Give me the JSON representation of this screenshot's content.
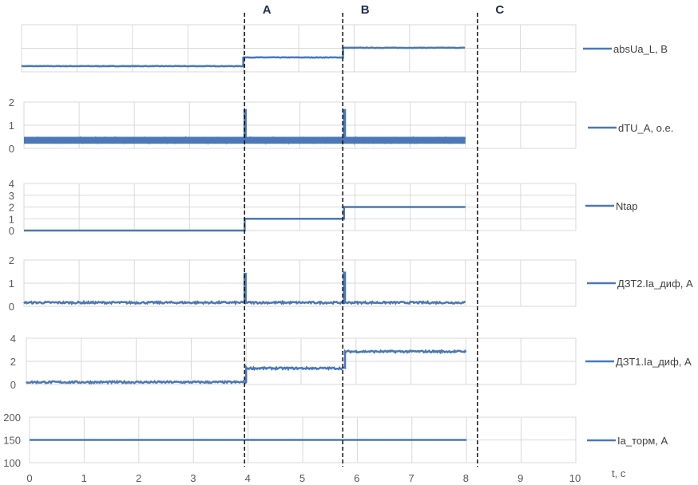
{
  "chart_data": {
    "type": "line",
    "title": "",
    "xlabel": "t, c",
    "xlim": [
      0,
      10
    ],
    "x_ticks": [
      "0",
      "1",
      "2",
      "3",
      "4",
      "5",
      "6",
      "7",
      "8",
      "9",
      "10"
    ],
    "grid": true,
    "legend_placement": "right",
    "line_color": "#4a78b8",
    "markers": [
      {
        "label": "A",
        "x": 4.0
      },
      {
        "label": "B",
        "x": 5.8
      },
      {
        "label": "C",
        "x": 8.27
      }
    ],
    "series": [
      {
        "name": "absUa_L, B",
        "ylim": [
          0,
          2
        ],
        "y_ticks": [],
        "gridlines": [
          1
        ],
        "segments": [
          {
            "from": 0,
            "to": 4.0,
            "value": 0.24
          },
          {
            "from": 4.0,
            "to": 5.8,
            "value": 0.61
          },
          {
            "from": 5.8,
            "to": 8.0,
            "value": 1.02
          }
        ],
        "noise": 0.01,
        "spikes": []
      },
      {
        "name": "dTU_A, o.e.",
        "ylim": [
          0,
          2
        ],
        "y_ticks": [
          "0",
          "1",
          "2"
        ],
        "gridlines": [
          1
        ],
        "segments": [
          {
            "from": 0,
            "to": 8.0,
            "value": 0.35
          }
        ],
        "noise": 0.15,
        "spikes": [
          {
            "x": 4.0,
            "value": 1.7
          },
          {
            "x": 5.8,
            "value": 1.7
          }
        ]
      },
      {
        "name": "Ntap",
        "ylim": [
          0,
          4
        ],
        "y_ticks": [
          "0",
          "1",
          "2",
          "3",
          "4"
        ],
        "gridlines": [
          1,
          2,
          3
        ],
        "segments": [
          {
            "from": 0,
            "to": 4.0,
            "value": 0
          },
          {
            "from": 4.0,
            "to": 5.8,
            "value": 1
          },
          {
            "from": 5.8,
            "to": 8.0,
            "value": 2
          }
        ],
        "noise": 0,
        "spikes": []
      },
      {
        "name": "ДЗТ2.Ia_диф, A",
        "ylim": [
          0,
          2
        ],
        "y_ticks": [
          "0",
          "1",
          "2"
        ],
        "gridlines": [
          1
        ],
        "segments": [
          {
            "from": 0,
            "to": 8.0,
            "value": 0.16
          }
        ],
        "noise": 0.04,
        "spikes": [
          {
            "x": 4.0,
            "value": 1.45
          },
          {
            "x": 5.8,
            "value": 1.5
          }
        ]
      },
      {
        "name": "ДЗТ1.Ia_диф, A",
        "ylim": [
          0,
          4
        ],
        "y_ticks": [
          "0",
          "2",
          "4"
        ],
        "gridlines": [
          2
        ],
        "segments": [
          {
            "from": 0,
            "to": 4.0,
            "value": 0.2
          },
          {
            "from": 4.0,
            "to": 5.8,
            "value": 1.4
          },
          {
            "from": 5.8,
            "to": 8.0,
            "value": 2.85
          }
        ],
        "noise": 0.08,
        "spikes": []
      },
      {
        "name": "Ia_торм, A",
        "ylim": [
          100,
          200
        ],
        "y_ticks": [
          "100",
          "150",
          "200"
        ],
        "gridlines": [
          150
        ],
        "segments": [
          {
            "from": 0,
            "to": 8.0,
            "value": 150
          }
        ],
        "noise": 0,
        "spikes": []
      }
    ]
  }
}
